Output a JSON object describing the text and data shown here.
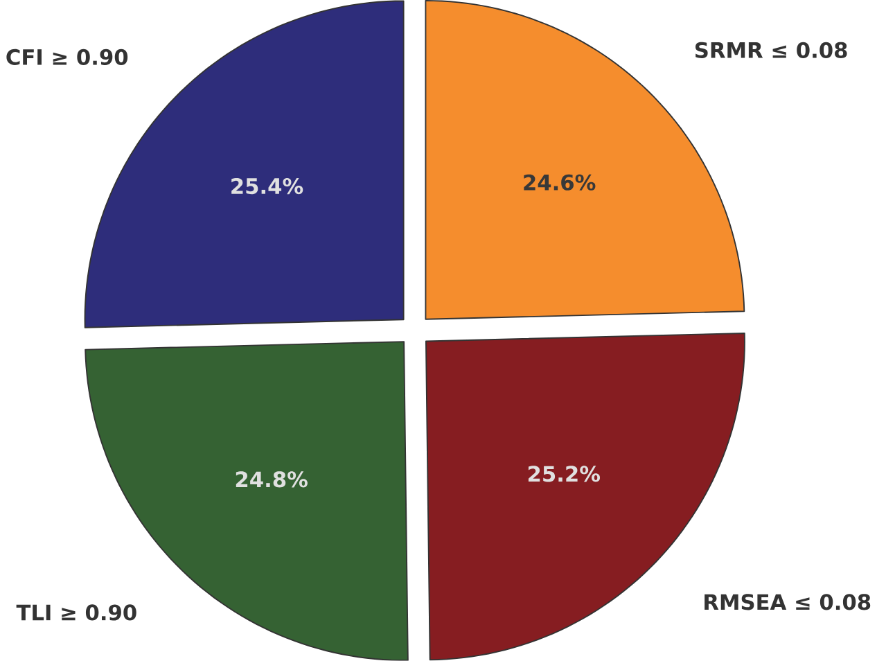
{
  "chart_data": {
    "type": "pie",
    "categories": [
      "CFI ≥ 0.90",
      "TLI ≥ 0.90",
      "RMSEA ≤ 0.08",
      "SRMR ≤ 0.08"
    ],
    "values": [
      25.4,
      24.8,
      25.2,
      24.6
    ],
    "colors": [
      "#2e2d7b",
      "#356233",
      "#861d21",
      "#f58d2d"
    ],
    "value_labels": [
      "25.4%",
      "24.8%",
      "25.2%",
      "24.6%"
    ]
  }
}
